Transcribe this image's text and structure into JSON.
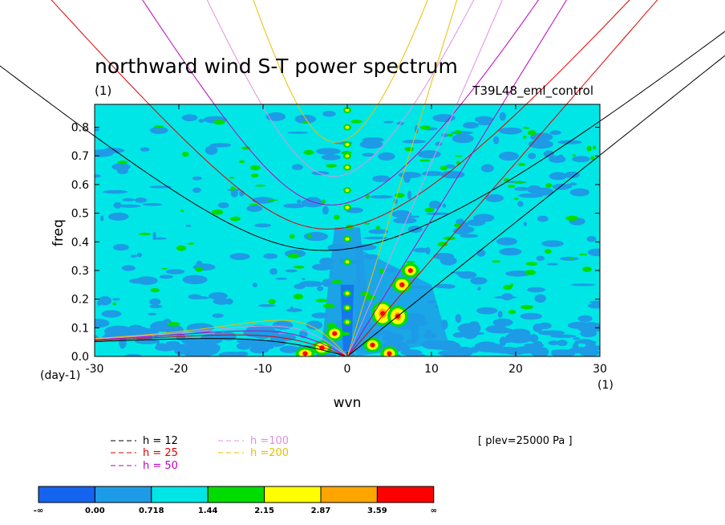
{
  "chart_data": {
    "type": "heatmap",
    "title": "northward wind S-T power spectrum",
    "subtitle_left": "(1)",
    "subtitle_right": "T39L48_eml_control",
    "xlabel": "wvn",
    "ylabel": "freq",
    "y_unit": "(day-1)",
    "x_unit": "(1)",
    "xlim": [
      -30,
      30
    ],
    "ylim": [
      0,
      0.88
    ],
    "xticks": [
      "-30",
      "-20",
      "-10",
      "0",
      "10",
      "20",
      "30"
    ],
    "yticks": [
      "0.0",
      "0.1",
      "0.2",
      "0.3",
      "0.4",
      "0.5",
      "0.6",
      "0.7",
      "0.8"
    ],
    "annotation": "[ plev=25000 Pa ]",
    "colorbar": {
      "labels": [
        "-∞",
        "0.00",
        "0.718",
        "1.44",
        "2.15",
        "2.87",
        "3.59",
        "∞"
      ],
      "colors": [
        "#1464f0",
        "#1e9be6",
        "#00e6e6",
        "#00dc00",
        "#ffff00",
        "#ffa500",
        "#ff0000"
      ]
    },
    "legend": [
      {
        "label": "h = 12",
        "color": "#000000"
      },
      {
        "label": "h = 25",
        "color": "#e00000"
      },
      {
        "label": "h = 50",
        "color": "#c000c0"
      },
      {
        "label": "h =100",
        "color": "#e090e0"
      },
      {
        "label": "h =200",
        "color": "#e8c000"
      }
    ],
    "series": [
      {
        "name": "h = 12",
        "equivalent_depth": 12,
        "color": "#000000"
      },
      {
        "name": "h = 25",
        "equivalent_depth": 25,
        "color": "#e00000"
      },
      {
        "name": "h = 50",
        "equivalent_depth": 50,
        "color": "#c000c0"
      },
      {
        "name": "h =100",
        "equivalent_depth": 100,
        "color": "#e090e0"
      },
      {
        "name": "h =200",
        "equivalent_depth": 200,
        "color": "#e8c000"
      }
    ],
    "background_level_color": "#00e6e6"
  }
}
